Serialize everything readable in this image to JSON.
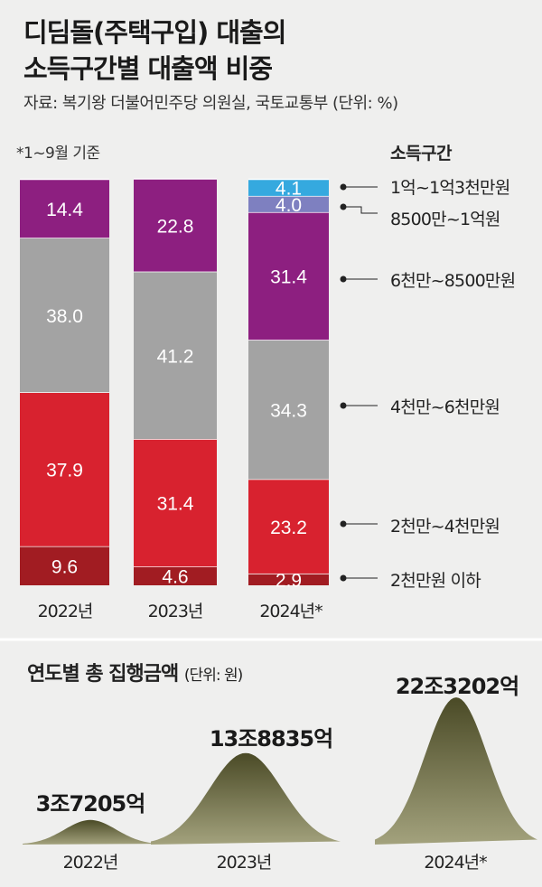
{
  "title_line1": "디딤돌(주택구입) 대출의",
  "title_line2": "소득구간별 대출액 비중",
  "source": "자료: 복기왕 더불어민주당 의원실, 국토교통부 (단위: %)",
  "note": "*1~9월 기준",
  "chart_data": [
    {
      "type": "bar",
      "stacked": true,
      "title": "디딤돌(주택구입) 대출의 소득구간별 대출액 비중",
      "unit": "%",
      "legend_title": "소득구간",
      "categories": [
        "2022년",
        "2023년",
        "2024년*"
      ],
      "series": [
        {
          "name": "2천만원 이하",
          "color": "#a11c22",
          "values": [
            9.6,
            4.6,
            2.9
          ]
        },
        {
          "name": "2천만~4천만원",
          "color": "#d8222f",
          "values": [
            37.9,
            31.4,
            23.2
          ]
        },
        {
          "name": "4천만~6천만원",
          "color": "#a3a3a3",
          "values": [
            38.0,
            41.2,
            34.3
          ]
        },
        {
          "name": "6천만~8500만원",
          "color": "#8d1f80",
          "values": [
            14.4,
            22.8,
            31.4
          ]
        },
        {
          "name": "8500만~1억원",
          "color": "#7e80c0",
          "values": [
            null,
            null,
            4.0
          ]
        },
        {
          "name": "1억~1억3천만원",
          "color": "#35a9df",
          "values": [
            null,
            null,
            4.1
          ]
        }
      ],
      "value_labels": [
        [
          "9.6",
          "4.6",
          "2.9"
        ],
        [
          "37.9",
          "31.4",
          "23.2"
        ],
        [
          "38.0",
          "41.2",
          "34.3"
        ],
        [
          "14.4",
          "22.8",
          "31.4"
        ],
        [
          "",
          "",
          "4.0"
        ],
        [
          "",
          "",
          "4.1"
        ]
      ],
      "legend_labels_top_to_bottom": [
        "1억~1억3천만원",
        "8500만~1억원",
        "6천만~8500만원",
        "4천만~6천만원",
        "2천만~4천만원",
        "2천만원 이하"
      ]
    },
    {
      "type": "area",
      "title": "연도별 총 집행금액",
      "unit_label": "(단위: 원)",
      "categories": [
        "2022년",
        "2023년",
        "2024년*"
      ],
      "values_jo": [
        3.7205,
        13.8835,
        22.3202
      ],
      "value_labels": [
        "3조7205억",
        "13조8835억",
        "22조3202억"
      ],
      "color": "#6b6a3f"
    }
  ]
}
